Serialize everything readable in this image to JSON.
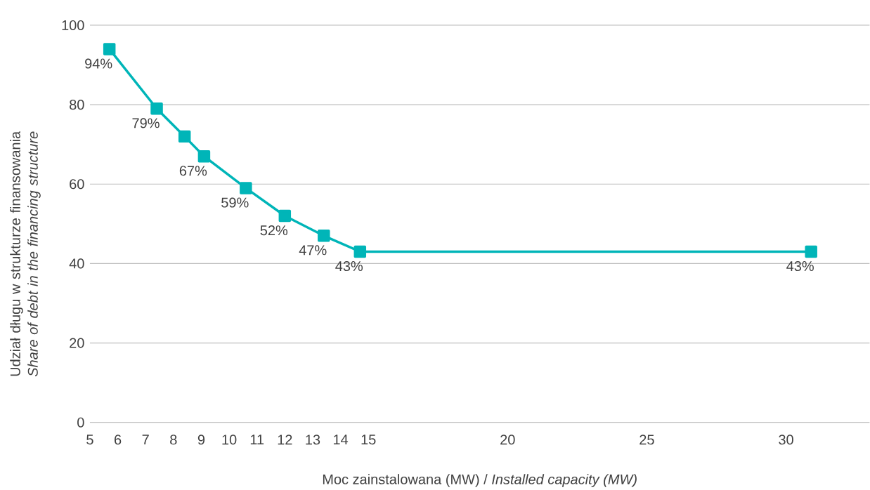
{
  "chart_data": {
    "type": "line",
    "xlabel": "Moc zainstalowana (MW) / *Installed capacity (MW)*",
    "ylabel": "Udział długu w strukturze finansowania *Share of debt in the financing structure*",
    "x": [
      5.7,
      7.4,
      8.4,
      9.1,
      10.6,
      12.0,
      13.4,
      14.7,
      30.9
    ],
    "series": [
      {
        "color": "#00b5b8",
        "values": [
          94,
          79,
          72,
          67,
          59,
          52,
          47,
          43,
          43
        ],
        "value_labels": [
          "94%",
          "79%",
          null,
          "67%",
          "59%",
          "52%",
          "47%",
          "43%",
          "43%"
        ]
      }
    ],
    "xlim": [
      5,
      33
    ],
    "xticks": [
      5,
      6,
      7,
      8,
      9,
      10,
      11,
      12,
      13,
      14,
      15,
      20,
      25,
      30
    ],
    "ylim": [
      0,
      100
    ],
    "yticks": [
      0,
      20,
      40,
      60,
      80,
      100
    ],
    "grid": "y",
    "marker": "square",
    "line_style": "solid"
  }
}
